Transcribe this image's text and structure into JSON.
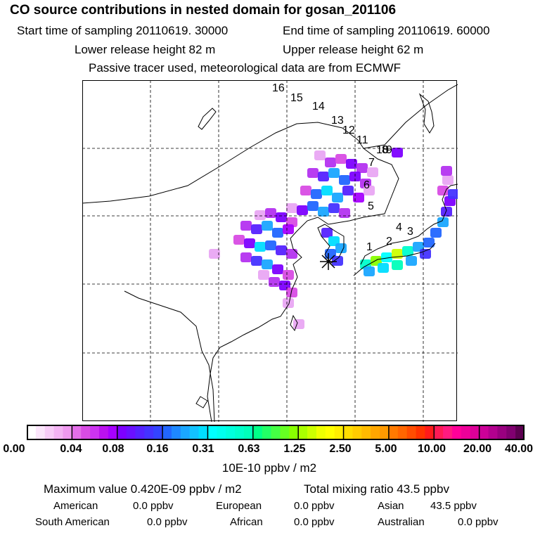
{
  "header": {
    "title": "CO  source contributions in nested domain for gosan_201106",
    "start_time": "Start time of sampling 20110619. 30000",
    "end_time": "End time of sampling 20110619. 60000",
    "lower_height": "Lower release height   82 m",
    "upper_height": "Upper release height   62 m",
    "tracer_note": "Passive tracer used, meteorological data are from ECMWF"
  },
  "map": {
    "trajectory_labels": [
      "1",
      "2",
      "3",
      "4",
      "5",
      "6",
      "7",
      "8",
      "9",
      "10",
      "11",
      "12",
      "13",
      "14",
      "15",
      "16"
    ],
    "receptor_symbol": "gosan-receptor-asterisk"
  },
  "colorbar": {
    "labels": [
      "0.00",
      "0.04",
      "0.08",
      "0.16",
      "0.31",
      "0.63",
      "1.25",
      "2.50",
      "5.00",
      "10.00",
      "20.00",
      "40.00"
    ],
    "units": "10E-10 ppbv / m2",
    "colors": [
      [
        "#ffffff",
        "#fbe6fb",
        "#f7ccf7",
        "#f3b3f3",
        "#ef99ef"
      ],
      [
        "#e46fe9",
        "#d84ce4",
        "#cc33f0",
        "#bb11ee",
        "#a600ff"
      ],
      [
        "#7d00ff",
        "#6a10ff",
        "#5522ff",
        "#4433ff",
        "#3344ff"
      ],
      [
        "#2266ff",
        "#1e88ff",
        "#1aa6ff",
        "#12c2ff",
        "#00ddff"
      ],
      [
        "#00ffff",
        "#00ffee",
        "#00ffdd",
        "#00ffcc",
        "#00ffbb"
      ],
      [
        "#00ff88",
        "#22ff66",
        "#44ff44",
        "#66ff22",
        "#88ff00"
      ],
      [
        "#aaff00",
        "#ccff00",
        "#eeff00",
        "#ffff00",
        "#ffee00"
      ],
      [
        "#ffdd00",
        "#ffcc00",
        "#ffbb00",
        "#ffa600",
        "#ff9900"
      ],
      [
        "#ff7a00",
        "#ff6600",
        "#ff4d00",
        "#ff3300",
        "#ff1a1a"
      ],
      [
        "#ff1a55",
        "#ff1a80",
        "#ff0099",
        "#ee0099",
        "#dd0099"
      ],
      [
        "#cc0099",
        "#b3008f",
        "#990080",
        "#800070",
        "#5c0050"
      ]
    ]
  },
  "stats": {
    "max_value": "Maximum value  0.420E-09 ppbv / m2",
    "total": "Total mixing ratio       43.5 ppbv",
    "regions": [
      {
        "name": "American",
        "value": "0.0 ppbv"
      },
      {
        "name": "European",
        "value": "0.0 ppbv"
      },
      {
        "name": "Asian",
        "value": "43.5 ppbv"
      },
      {
        "name": "South American",
        "value": "0.0 ppbv"
      },
      {
        "name": "African",
        "value": "0.0 ppbv"
      },
      {
        "name": "Australian",
        "value": "0.0 ppbv"
      }
    ]
  }
}
